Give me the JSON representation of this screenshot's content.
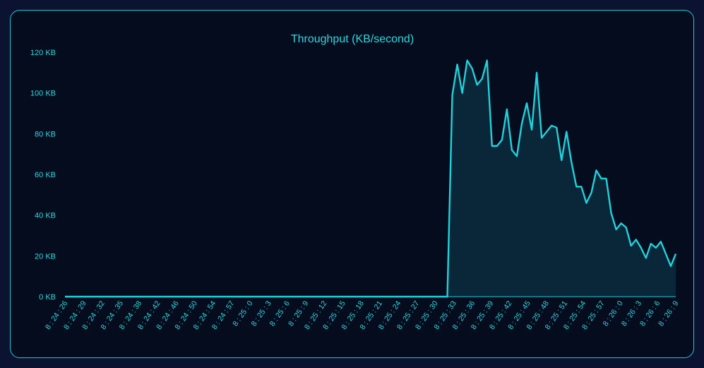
{
  "chart_data": {
    "type": "area",
    "title": "Throughput (KB/second)",
    "xlabel": "",
    "ylabel": "",
    "y_unit": "KB",
    "ylim": [
      0,
      120
    ],
    "yticks": [
      0,
      20,
      40,
      60,
      80,
      100,
      120
    ],
    "ytick_labels": [
      "0 KB",
      "20 KB",
      "40 KB",
      "60 KB",
      "80 KB",
      "100 KB",
      "120 KB"
    ],
    "grid": false,
    "legend": "none",
    "line_color": "#1fd3dc",
    "fill_color": "#0b2a3c",
    "xtick_labels": [
      "8:24:26",
      "8:24:29",
      "8:24:32",
      "8:24:35",
      "8:24:38",
      "8:24:42",
      "8:24:46",
      "8:24:50",
      "8:24:54",
      "8:24:57",
      "8:25:0",
      "8:25:3",
      "8:25:6",
      "8:25:9",
      "8:25:12",
      "8:25:15",
      "8:25:18",
      "8:25:21",
      "8:25:24",
      "8:25:27",
      "8:25:30",
      "8:25:33",
      "8:25:36",
      "8:25:39",
      "8:25:42",
      "8:25:45",
      "8:25:48",
      "8:25:51",
      "8:25:54",
      "8:25:57",
      "8:26:0",
      "8:26:3",
      "8:26:6",
      "8:26:9"
    ],
    "series": [
      {
        "values": [
          0,
          0,
          0,
          0,
          0,
          0,
          0,
          0,
          0,
          0,
          0,
          0,
          0,
          0,
          0,
          0,
          0,
          0,
          0,
          0,
          0,
          0,
          0,
          0,
          0,
          0,
          0,
          0,
          0,
          0,
          0,
          0,
          0,
          0,
          0,
          0,
          0,
          0,
          0,
          0,
          0,
          0,
          0,
          0,
          0,
          0,
          0,
          0,
          0,
          0,
          0,
          0,
          0,
          0,
          0,
          0,
          0,
          0,
          0,
          0,
          0,
          0,
          0,
          0,
          0,
          0,
          0,
          0,
          0,
          0,
          0,
          0,
          0,
          0,
          0,
          0,
          0,
          0,
          99,
          114,
          100,
          116,
          112,
          104,
          107,
          116,
          74,
          74,
          77,
          92,
          72,
          69,
          85,
          95,
          82,
          110,
          78,
          81,
          84,
          83,
          67,
          81,
          66,
          54,
          54,
          46,
          51,
          62,
          58,
          58,
          41,
          33,
          36,
          34,
          25,
          28,
          24,
          19,
          26,
          24,
          27,
          21,
          15,
          21
        ]
      }
    ]
  }
}
